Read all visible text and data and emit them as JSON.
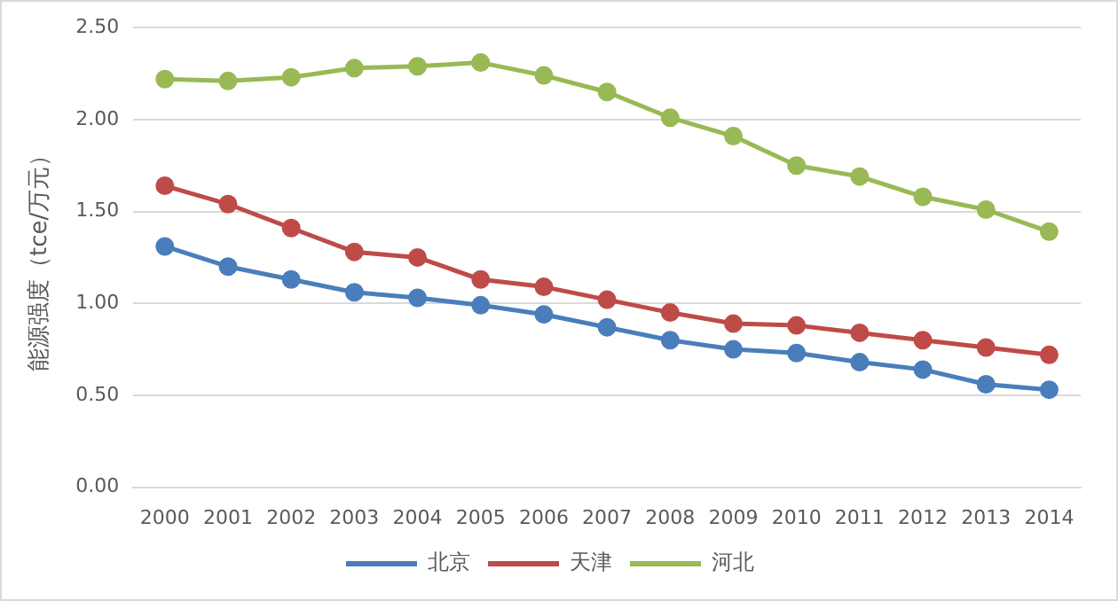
{
  "chart_data": {
    "type": "line",
    "ylabel": "能源强度（tce/万元）",
    "categories": [
      "2000",
      "2001",
      "2002",
      "2003",
      "2004",
      "2005",
      "2006",
      "2007",
      "2008",
      "2009",
      "2010",
      "2011",
      "2012",
      "2013",
      "2014"
    ],
    "series": [
      {
        "name": "北京",
        "color": "#4a7ebb",
        "values": [
          1.31,
          1.2,
          1.13,
          1.06,
          1.03,
          0.99,
          0.94,
          0.87,
          0.8,
          0.75,
          0.73,
          0.68,
          0.64,
          0.56,
          0.53
        ]
      },
      {
        "name": "天津",
        "color": "#be4b48",
        "values": [
          1.64,
          1.54,
          1.41,
          1.28,
          1.25,
          1.13,
          1.09,
          1.02,
          0.95,
          0.89,
          0.88,
          0.84,
          0.8,
          0.76,
          0.72
        ]
      },
      {
        "name": "河北",
        "color": "#98b954",
        "values": [
          2.22,
          2.21,
          2.23,
          2.28,
          2.29,
          2.31,
          2.24,
          2.15,
          2.01,
          1.91,
          1.75,
          1.69,
          1.58,
          1.51,
          1.39
        ]
      }
    ],
    "ylim": [
      0,
      2.5
    ],
    "yticks": [
      {
        "value": 0,
        "label": "0.00"
      },
      {
        "value": 0.5,
        "label": "0.50"
      },
      {
        "value": 1,
        "label": "1.00"
      },
      {
        "value": 1.5,
        "label": "1.50"
      },
      {
        "value": 2,
        "label": "2.00"
      },
      {
        "value": 2.5,
        "label": "2.50"
      }
    ],
    "grid": "y",
    "legend": "bottom",
    "marker": "circle",
    "line_style": "solid"
  }
}
